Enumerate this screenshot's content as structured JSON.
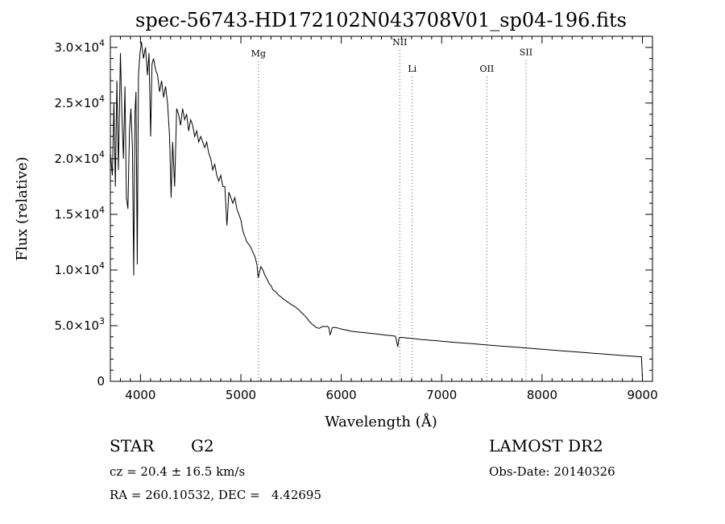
{
  "chart_data": {
    "type": "line",
    "title": "spec-56743-HD172102N043708V01_sp04-196.fits",
    "xlabel": "Wavelength (Å)",
    "ylabel": "Flux (relative)",
    "xlim": [
      3700,
      9100
    ],
    "ylim": [
      0,
      31000
    ],
    "x_ticks": [
      4000,
      5000,
      6000,
      7000,
      8000,
      9000
    ],
    "y_ticks": [
      {
        "value": 0,
        "mantissa": "0",
        "exp": ""
      },
      {
        "value": 5000,
        "mantissa": "5.0×10",
        "exp": "3"
      },
      {
        "value": 10000,
        "mantissa": "1.0×10",
        "exp": "4"
      },
      {
        "value": 15000,
        "mantissa": "1.5×10",
        "exp": "4"
      },
      {
        "value": 20000,
        "mantissa": "2.0×10",
        "exp": "4"
      },
      {
        "value": 25000,
        "mantissa": "2.5×10",
        "exp": "4"
      },
      {
        "value": 30000,
        "mantissa": "3.0×10",
        "exp": "4"
      }
    ],
    "lines": [
      {
        "name": "Mg",
        "wavelength": 5175,
        "label_y": 29200
      },
      {
        "name": "NII",
        "wavelength": 6583,
        "label_y": 30200
      },
      {
        "name": "Li",
        "wavelength": 6707,
        "label_y": 27800
      },
      {
        "name": "OII",
        "wavelength": 7450,
        "label_y": 27800
      },
      {
        "name": "SII",
        "wavelength": 7840,
        "label_y": 29300
      }
    ],
    "series": [
      {
        "points": [
          [
            3700,
            20500
          ],
          [
            3720,
            18500
          ],
          [
            3735,
            25000
          ],
          [
            3750,
            17500
          ],
          [
            3765,
            27000
          ],
          [
            3780,
            19000
          ],
          [
            3800,
            29500
          ],
          [
            3815,
            24000
          ],
          [
            3830,
            20000
          ],
          [
            3845,
            26500
          ],
          [
            3860,
            16500
          ],
          [
            3875,
            15500
          ],
          [
            3890,
            22500
          ],
          [
            3905,
            24500
          ],
          [
            3920,
            21000
          ],
          [
            3933,
            9500
          ],
          [
            3945,
            24000
          ],
          [
            3955,
            26000
          ],
          [
            3968,
            10500
          ],
          [
            3980,
            27500
          ],
          [
            3995,
            29500
          ],
          [
            4010,
            30500
          ],
          [
            4030,
            29000
          ],
          [
            4050,
            30000
          ],
          [
            4070,
            27500
          ],
          [
            4085,
            29500
          ],
          [
            4101,
            22000
          ],
          [
            4115,
            28500
          ],
          [
            4130,
            29000
          ],
          [
            4150,
            28000
          ],
          [
            4170,
            27500
          ],
          [
            4190,
            26000
          ],
          [
            4210,
            27000
          ],
          [
            4230,
            25500
          ],
          [
            4250,
            26500
          ],
          [
            4270,
            25000
          ],
          [
            4290,
            22000
          ],
          [
            4305,
            16500
          ],
          [
            4320,
            21500
          ],
          [
            4340,
            17500
          ],
          [
            4360,
            24500
          ],
          [
            4380,
            24000
          ],
          [
            4400,
            23000
          ],
          [
            4420,
            24500
          ],
          [
            4440,
            23500
          ],
          [
            4460,
            24000
          ],
          [
            4480,
            22500
          ],
          [
            4500,
            23500
          ],
          [
            4520,
            23000
          ],
          [
            4540,
            22000
          ],
          [
            4560,
            22500
          ],
          [
            4580,
            21500
          ],
          [
            4600,
            22000
          ],
          [
            4620,
            21500
          ],
          [
            4640,
            21000
          ],
          [
            4660,
            21500
          ],
          [
            4680,
            20500
          ],
          [
            4700,
            20000
          ],
          [
            4720,
            19000
          ],
          [
            4740,
            19500
          ],
          [
            4760,
            18500
          ],
          [
            4780,
            18000
          ],
          [
            4800,
            18500
          ],
          [
            4820,
            17500
          ],
          [
            4840,
            17500
          ],
          [
            4861,
            14000
          ],
          [
            4880,
            17000
          ],
          [
            4900,
            16500
          ],
          [
            4920,
            16000
          ],
          [
            4940,
            16500
          ],
          [
            4960,
            15500
          ],
          [
            4980,
            15000
          ],
          [
            5000,
            14500
          ],
          [
            5020,
            13500
          ],
          [
            5040,
            13000
          ],
          [
            5060,
            12500
          ],
          [
            5080,
            12300
          ],
          [
            5100,
            12000
          ],
          [
            5120,
            11600
          ],
          [
            5140,
            11200
          ],
          [
            5160,
            10500
          ],
          [
            5172,
            9300
          ],
          [
            5183,
            9700
          ],
          [
            5200,
            10300
          ],
          [
            5220,
            10000
          ],
          [
            5240,
            9500
          ],
          [
            5260,
            9200
          ],
          [
            5280,
            8800
          ],
          [
            5300,
            8600
          ],
          [
            5320,
            8200
          ],
          [
            5340,
            8100
          ],
          [
            5360,
            7900
          ],
          [
            5380,
            7700
          ],
          [
            5400,
            7600
          ],
          [
            5420,
            7400
          ],
          [
            5440,
            7300
          ],
          [
            5460,
            7150
          ],
          [
            5480,
            7050
          ],
          [
            5500,
            6900
          ],
          [
            5520,
            6800
          ],
          [
            5540,
            6700
          ],
          [
            5560,
            6550
          ],
          [
            5580,
            6400
          ],
          [
            5600,
            6200
          ],
          [
            5620,
            6050
          ],
          [
            5640,
            5850
          ],
          [
            5660,
            5650
          ],
          [
            5680,
            5400
          ],
          [
            5700,
            5200
          ],
          [
            5720,
            5050
          ],
          [
            5740,
            4900
          ],
          [
            5760,
            4800
          ],
          [
            5780,
            4750
          ],
          [
            5800,
            4850
          ],
          [
            5820,
            4950
          ],
          [
            5840,
            4900
          ],
          [
            5860,
            4950
          ],
          [
            5875,
            4850
          ],
          [
            5889,
            4200
          ],
          [
            5896,
            4350
          ],
          [
            5910,
            4800
          ],
          [
            5930,
            4850
          ],
          [
            5960,
            4800
          ],
          [
            6000,
            4700
          ],
          [
            6050,
            4600
          ],
          [
            6100,
            4500
          ],
          [
            6150,
            4450
          ],
          [
            6200,
            4400
          ],
          [
            6250,
            4350
          ],
          [
            6300,
            4300
          ],
          [
            6350,
            4250
          ],
          [
            6400,
            4200
          ],
          [
            6450,
            4150
          ],
          [
            6500,
            4100
          ],
          [
            6540,
            4050
          ],
          [
            6563,
            3100
          ],
          [
            6575,
            3900
          ],
          [
            6600,
            3950
          ],
          [
            6650,
            3900
          ],
          [
            6700,
            3850
          ],
          [
            6750,
            3800
          ],
          [
            6800,
            3750
          ],
          [
            6850,
            3720
          ],
          [
            6900,
            3680
          ],
          [
            6950,
            3650
          ],
          [
            7000,
            3600
          ],
          [
            7100,
            3520
          ],
          [
            7200,
            3450
          ],
          [
            7300,
            3380
          ],
          [
            7400,
            3300
          ],
          [
            7500,
            3230
          ],
          [
            7600,
            3160
          ],
          [
            7700,
            3090
          ],
          [
            7800,
            3020
          ],
          [
            7900,
            2950
          ],
          [
            8000,
            2880
          ],
          [
            8100,
            2810
          ],
          [
            8200,
            2740
          ],
          [
            8300,
            2670
          ],
          [
            8400,
            2600
          ],
          [
            8500,
            2530
          ],
          [
            8600,
            2460
          ],
          [
            8700,
            2390
          ],
          [
            8800,
            2320
          ],
          [
            8900,
            2250
          ],
          [
            8990,
            2200
          ],
          [
            9000,
            300
          ]
        ]
      }
    ]
  },
  "info": {
    "object_type": "STAR",
    "subclass": "G2",
    "redshift": "cz = 20.4 ± 16.5 km/s",
    "coords": "RA = 260.10532, DEC =   4.42695",
    "survey": "LAMOST DR2",
    "obs_date": "Obs-Date: 20140326"
  }
}
